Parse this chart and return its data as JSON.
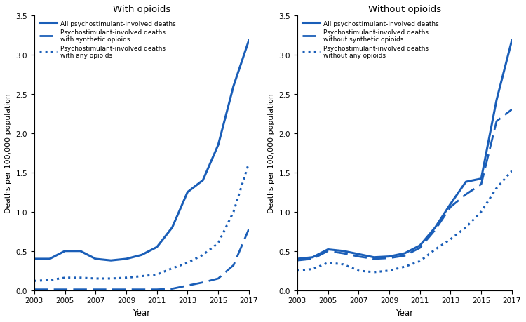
{
  "years": [
    2003,
    2004,
    2005,
    2006,
    2007,
    2008,
    2009,
    2010,
    2011,
    2012,
    2013,
    2014,
    2015,
    2016,
    2017
  ],
  "left": {
    "title": "With opioids",
    "solid": [
      0.4,
      0.4,
      0.5,
      0.5,
      0.4,
      0.38,
      0.4,
      0.45,
      0.55,
      0.8,
      1.25,
      1.4,
      1.85,
      2.6,
      3.18
    ],
    "long_dash": [
      0.01,
      0.01,
      0.01,
      0.01,
      0.01,
      0.01,
      0.01,
      0.01,
      0.01,
      0.02,
      0.06,
      0.1,
      0.15,
      0.32,
      0.78
    ],
    "dotted": [
      0.12,
      0.13,
      0.16,
      0.16,
      0.15,
      0.15,
      0.16,
      0.18,
      0.2,
      0.28,
      0.35,
      0.45,
      0.6,
      1.0,
      1.62
    ],
    "legend": [
      "All psychostimulant-involved deaths",
      "Psychostimulant-involved deaths\nwith synthetic opioids",
      "Psychostimulant-involved deaths\nwith any opioids"
    ]
  },
  "right": {
    "title": "Without opioids",
    "solid": [
      0.4,
      0.42,
      0.52,
      0.5,
      0.46,
      0.42,
      0.43,
      0.47,
      0.57,
      0.8,
      1.1,
      1.38,
      1.42,
      2.42,
      3.18
    ],
    "long_dash": [
      0.38,
      0.4,
      0.5,
      0.47,
      0.43,
      0.4,
      0.41,
      0.44,
      0.54,
      0.77,
      1.06,
      1.22,
      1.35,
      2.15,
      2.3
    ],
    "dotted": [
      0.25,
      0.27,
      0.35,
      0.33,
      0.25,
      0.23,
      0.25,
      0.3,
      0.37,
      0.52,
      0.65,
      0.8,
      1.0,
      1.3,
      1.52
    ],
    "legend": [
      "All psychostimulant-involved deaths",
      "Psychostimulant-involved deaths\nwithout synthetic opioids",
      "Psychostimulant-involved deaths\nwithout any opioids"
    ]
  },
  "ylabel": "Deaths per 100,000 population",
  "xlabel": "Year",
  "ylim": [
    0,
    3.5
  ],
  "yticks": [
    0,
    0.5,
    1.0,
    1.5,
    2.0,
    2.5,
    3.0,
    3.5
  ],
  "xticks": [
    2003,
    2005,
    2007,
    2009,
    2011,
    2013,
    2015,
    2017
  ],
  "line_color": "#1a5eb8",
  "linewidth_solid": 2.2,
  "linewidth_dash": 2.0,
  "linewidth_dot": 2.2,
  "background_color": "#ffffff",
  "figsize": [
    7.5,
    4.6
  ],
  "dpi": 100
}
